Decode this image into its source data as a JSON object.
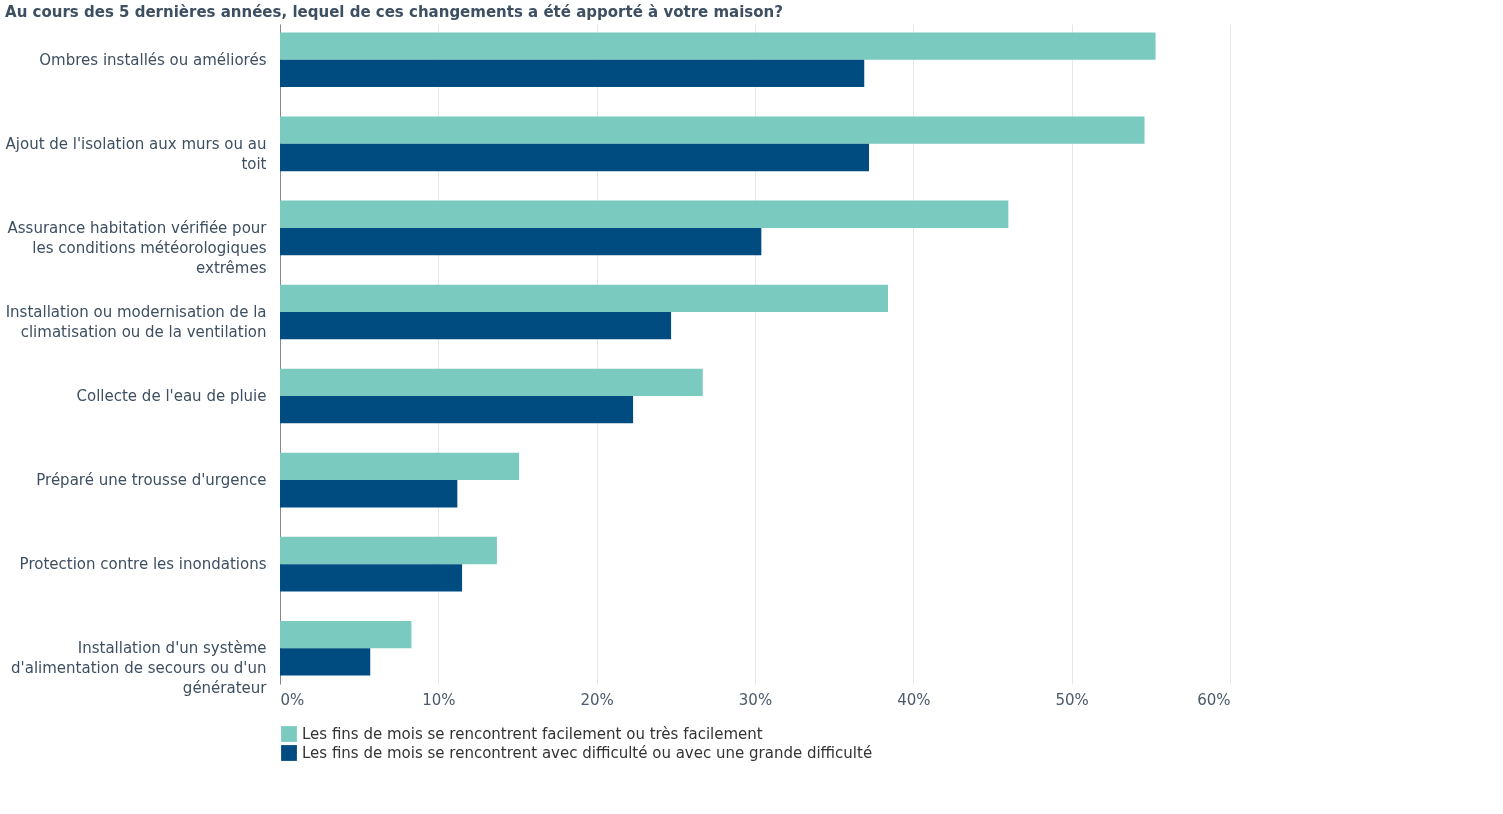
{
  "chart_data": {
    "type": "bar",
    "orientation": "horizontal",
    "title": "Au cours des 5 dernières années, lequel de ces changements a été apporté à votre maison?",
    "categories": [
      "Ombres installés ou améliorés",
      "Ajout de l'isolation aux murs ou au toit",
      "Assurance habitation vérifiée pour les conditions météorologiques extrêmes",
      "Installation ou modernisation de la climatisation ou de la ventilation",
      "Collecte de l'eau de pluie",
      "Préparé une trousse d'urgence",
      "Protection contre les inondations",
      "Installation d'un système d'alimentation de secours ou d'un générateur"
    ],
    "series": [
      {
        "name": "Les fins de mois se rencontrent facilement ou très facilement",
        "color": "#7acac0",
        "values": [
          55.3,
          54.6,
          46.0,
          38.4,
          26.7,
          15.1,
          13.7,
          8.3
        ]
      },
      {
        "name": "Les fins de mois se rencontrent avec difficulté ou avec une grande difficulté",
        "color": "#004b80",
        "values": [
          36.9,
          37.2,
          30.4,
          24.7,
          22.3,
          11.2,
          11.5,
          5.7
        ]
      }
    ],
    "xlim": [
      0,
      60
    ],
    "xticks": [
      {
        "value": 0,
        "label": "0%"
      },
      {
        "value": 10,
        "label": "10%"
      },
      {
        "value": 20,
        "label": "20%"
      },
      {
        "value": 30,
        "label": "30%"
      },
      {
        "value": 40,
        "label": "40%"
      },
      {
        "value": 50,
        "label": "50%"
      },
      {
        "value": 60,
        "label": "60%"
      }
    ],
    "grid": "x",
    "legend": "bottom"
  }
}
